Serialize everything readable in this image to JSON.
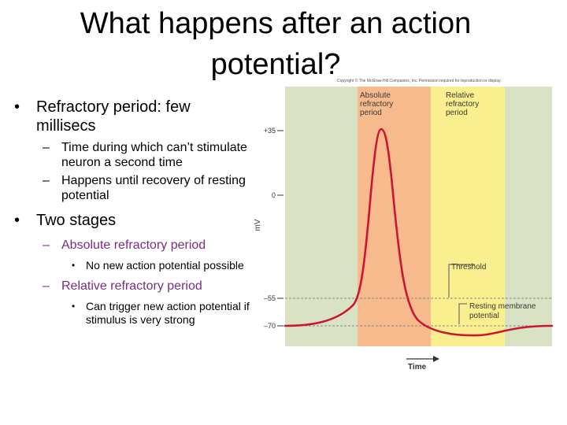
{
  "slide": {
    "title_line1": "What happens after an action",
    "title_line2": "potential?"
  },
  "bullets": {
    "b1": "Refractory period: few millisecs",
    "b1_sub1": "Time during which can’t stimulate neuron a second time",
    "b1_sub2": "Happens until recovery of resting potential",
    "b2": "Two stages",
    "b2_sub1": "Absolute refractory period",
    "b2_sub1_item": "No new action potential possible",
    "b2_sub2": "Relative refractory period",
    "b2_sub2_item": "Can trigger new action potential if stimulus is very strong",
    "dash": "–",
    "dot": "•"
  },
  "figure": {
    "copyright": "Copyright © The McGraw-Hill Companies, Inc. Permission required for reproduction or display.",
    "absolute_label": [
      "Absolute",
      "refractory",
      "period"
    ],
    "relative_label": [
      "Relative",
      "refractory",
      "period"
    ],
    "threshold_label": "Threshold",
    "resting_label": [
      "Resting membrane",
      "potential"
    ],
    "y_axis_label": "mV",
    "y_ticks": [
      "+35",
      "0",
      "–55",
      "–70"
    ],
    "x_axis_label": "Time",
    "colors": {
      "background_green": "#d9e3c4",
      "absolute_orange": "#f6ba8c",
      "relative_yellow": "#fbee8e",
      "curve": "#cc1533"
    }
  }
}
